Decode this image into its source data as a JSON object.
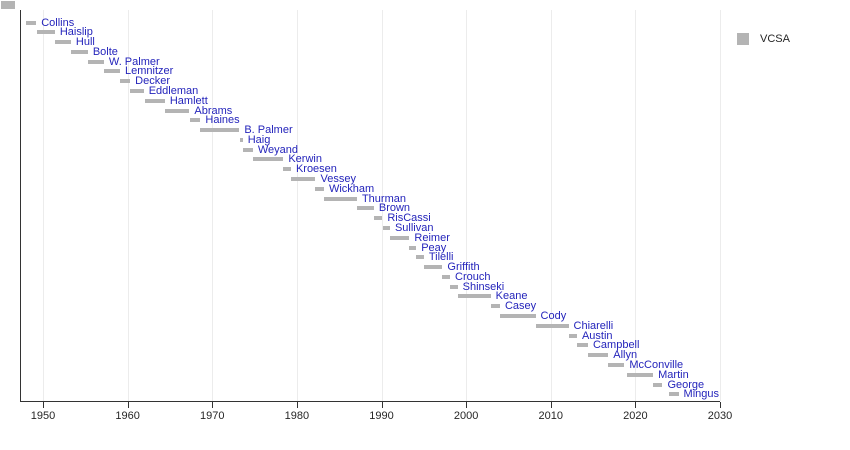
{
  "legend": {
    "label": "VCSA",
    "swatch_color": "#b4b4b4"
  },
  "colors": {
    "background": "#ffffff",
    "bar": "#b4b4b4",
    "label": "#2424bb",
    "axis_line": "#333333",
    "grid_line": "#ececec",
    "tick_text": "#262626"
  },
  "chart_data": {
    "type": "bar",
    "variant": "horizontal-timeline-gantt",
    "title": "",
    "xlabel": "",
    "ylabel": "",
    "legend_entries": [
      "VCSA"
    ],
    "legend_position": "top-right",
    "grid": "vertical-decade-lines",
    "xlim": [
      1947.3,
      2030
    ],
    "x_ticks": [
      1950,
      1960,
      1970,
      1980,
      1990,
      2000,
      2010,
      2020,
      2030
    ],
    "x_units": "year",
    "series": [
      {
        "name": "Collins",
        "start": 1948.0,
        "end": 1949.2
      },
      {
        "name": "Haislip",
        "start": 1949.3,
        "end": 1951.4
      },
      {
        "name": "Hull",
        "start": 1951.4,
        "end": 1953.3
      },
      {
        "name": "Bolte",
        "start": 1953.3,
        "end": 1955.3
      },
      {
        "name": "W. Palmer",
        "start": 1955.3,
        "end": 1957.2
      },
      {
        "name": "Lemnitzer",
        "start": 1957.2,
        "end": 1959.1
      },
      {
        "name": "Decker",
        "start": 1959.1,
        "end": 1960.3
      },
      {
        "name": "Eddleman",
        "start": 1960.3,
        "end": 1961.9
      },
      {
        "name": "Hamlett",
        "start": 1962.0,
        "end": 1964.4
      },
      {
        "name": "Abrams",
        "start": 1964.4,
        "end": 1967.3
      },
      {
        "name": "Haines",
        "start": 1967.4,
        "end": 1968.6
      },
      {
        "name": "B. Palmer",
        "start": 1968.6,
        "end": 1973.2
      },
      {
        "name": "Haig",
        "start": 1973.3,
        "end": 1973.6
      },
      {
        "name": "Weyand",
        "start": 1973.6,
        "end": 1974.8
      },
      {
        "name": "Kerwin",
        "start": 1974.8,
        "end": 1978.4
      },
      {
        "name": "Kroesen",
        "start": 1978.4,
        "end": 1979.3
      },
      {
        "name": "Vessey",
        "start": 1979.3,
        "end": 1982.2
      },
      {
        "name": "Wickham",
        "start": 1982.2,
        "end": 1983.2
      },
      {
        "name": "Thurman",
        "start": 1983.2,
        "end": 1987.1
      },
      {
        "name": "Brown",
        "start": 1987.1,
        "end": 1989.1
      },
      {
        "name": "RisCassi",
        "start": 1989.1,
        "end": 1990.1
      },
      {
        "name": "Sullivan",
        "start": 1990.2,
        "end": 1991.0
      },
      {
        "name": "Reimer",
        "start": 1991.0,
        "end": 1993.3
      },
      {
        "name": "Peay",
        "start": 1993.3,
        "end": 1994.1
      },
      {
        "name": "Tilelli",
        "start": 1994.1,
        "end": 1995.0
      },
      {
        "name": "Griffith",
        "start": 1995.0,
        "end": 1997.2
      },
      {
        "name": "Crouch",
        "start": 1997.2,
        "end": 1998.1
      },
      {
        "name": "Shinseki",
        "start": 1998.1,
        "end": 1999.0
      },
      {
        "name": "Keane",
        "start": 1999.0,
        "end": 2002.9
      },
      {
        "name": "Casey",
        "start": 2002.9,
        "end": 2004.0
      },
      {
        "name": "Cody",
        "start": 2004.0,
        "end": 2008.2
      },
      {
        "name": "Chiarelli",
        "start": 2008.2,
        "end": 2012.1
      },
      {
        "name": "Austin",
        "start": 2012.1,
        "end": 2013.1
      },
      {
        "name": "Campbell",
        "start": 2013.1,
        "end": 2014.4
      },
      {
        "name": "Allyn",
        "start": 2014.4,
        "end": 2016.8
      },
      {
        "name": "McConville",
        "start": 2016.8,
        "end": 2018.7
      },
      {
        "name": "Martin",
        "start": 2019.0,
        "end": 2022.1
      },
      {
        "name": "George",
        "start": 2022.1,
        "end": 2023.2
      },
      {
        "name": "Mingus",
        "start": 2024.0,
        "end": 2025.1
      }
    ]
  }
}
